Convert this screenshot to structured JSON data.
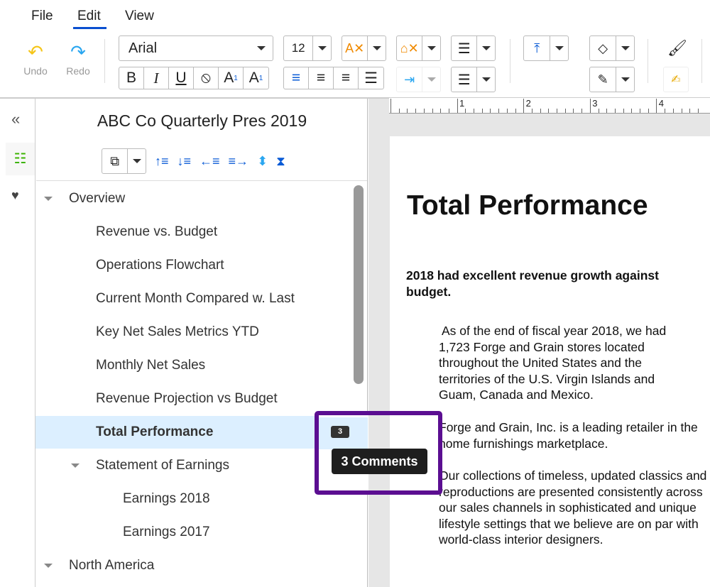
{
  "menu": {
    "file": "File",
    "edit": "Edit",
    "view": "View"
  },
  "toolbar": {
    "undo": "Undo",
    "redo": "Redo",
    "font": "Arial",
    "size": "12",
    "bold": "B",
    "italic": "I",
    "underline": "U",
    "superscript": "A",
    "subscript": "A",
    "accent": "#0a5bd6"
  },
  "ruler": [
    "1",
    "2",
    "3",
    "4"
  ],
  "tree": {
    "title": "ABC Co Quarterly Pres 2019",
    "items": [
      {
        "label": "Overview",
        "level": 0,
        "expanded": true
      },
      {
        "label": "Revenue vs. Budget",
        "level": 1
      },
      {
        "label": "Operations Flowchart",
        "level": 1
      },
      {
        "label": "Current Month Compared w. Last",
        "level": 1
      },
      {
        "label": "Key Net Sales Metrics YTD",
        "level": 1
      },
      {
        "label": "Monthly Net Sales",
        "level": 1
      },
      {
        "label": "Revenue Projection vs Budget",
        "level": 1
      },
      {
        "label": "Total Performance",
        "level": 1,
        "selected": true,
        "comments": "3"
      },
      {
        "label": "Statement of Earnings",
        "level": 1,
        "expanded": true
      },
      {
        "label": "Earnings 2018",
        "level": 2
      },
      {
        "label": "Earnings 2017",
        "level": 2
      },
      {
        "label": "North America",
        "level": 0,
        "expanded": true
      }
    ]
  },
  "tooltip": "3 Comments",
  "highlight_color": "#5b0e91",
  "doc": {
    "heading": "Total Performance",
    "subheading": "2018 had excellent revenue growth against budget.",
    "p1": "As of the end of fiscal year 2018, we had 1,723 Forge and Grain stores located throughout the United States and the territories of the U.S. Virgin Islands and Guam, Canada and Mexico.",
    "p2": "Forge and Grain, Inc. is a leading retailer in the home furnishings marketplace.",
    "p3": "Our collections of timeless, updated classics and reproductions are presented consistently across our sales channels in sophisticated and unique lifestyle settings that we believe are on par with world-class interior designers."
  }
}
